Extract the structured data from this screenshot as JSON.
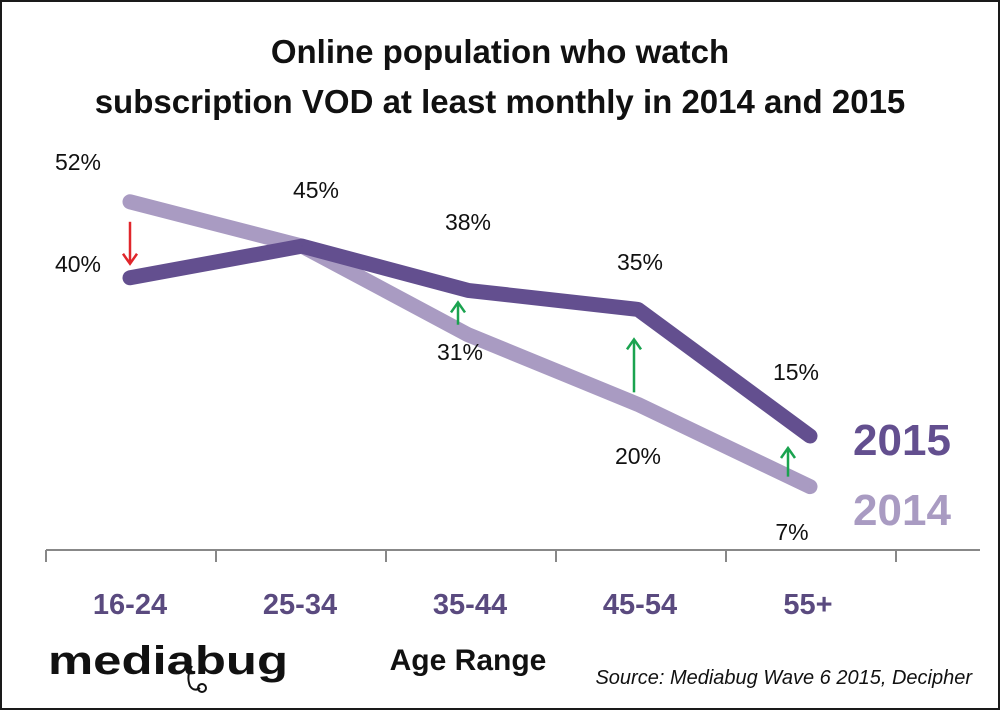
{
  "chart_data": {
    "type": "line",
    "title_lines": [
      "Online population who watch",
      "subscription VOD at least monthly in 2014 and 2015"
    ],
    "categories": [
      "16-24",
      "25-34",
      "35-44",
      "45-54",
      "55+"
    ],
    "xlabel": "Age Range",
    "ylabel": "",
    "ylim": [
      0,
      60
    ],
    "grid": false,
    "legend_placement": "right",
    "series": [
      {
        "name": "2015",
        "values": [
          40,
          45,
          38,
          35,
          15
        ],
        "labels": [
          "40%",
          "45%",
          "38%",
          "35%",
          "15%"
        ],
        "color": "#634f8f"
      },
      {
        "name": "2014",
        "values": [
          52,
          45,
          31,
          20,
          7
        ],
        "labels": [
          "52%",
          "",
          "31%",
          "20%",
          "7%"
        ],
        "color": "#a99bc2"
      }
    ],
    "change_arrows": [
      {
        "category": "16-24",
        "direction": "down",
        "color": "#e0262b"
      },
      {
        "category": "35-44",
        "direction": "up",
        "color": "#1aa34f"
      },
      {
        "category": "45-54",
        "direction": "up",
        "color": "#1aa34f"
      },
      {
        "category": "55+",
        "direction": "up",
        "color": "#1aa34f"
      }
    ],
    "category_label_color": "#5a4a7f",
    "axis_color": "#888888"
  },
  "logo": {
    "text": "mediabug"
  },
  "source": "Source: Mediabug Wave 6 2015, Decipher"
}
